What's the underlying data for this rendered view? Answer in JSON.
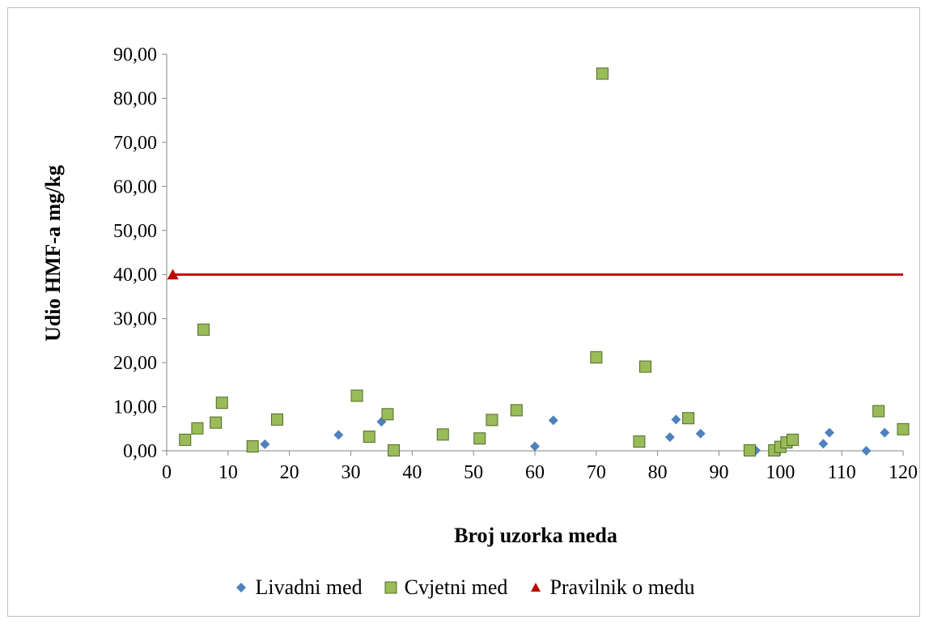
{
  "chart_data": {
    "type": "scatter",
    "xlabel": "Broj uzorka meda",
    "ylabel": "Udio HMF-a mg/kg",
    "xlim": [
      0,
      120
    ],
    "ylim": [
      0,
      90
    ],
    "x_ticks": [
      "0",
      "10",
      "20",
      "30",
      "40",
      "50",
      "60",
      "70",
      "80",
      "90",
      "100",
      "110",
      "120"
    ],
    "y_ticks": [
      "0,00",
      "10,00",
      "20,00",
      "30,00",
      "40,00",
      "50,00",
      "60,00",
      "70,00",
      "80,00",
      "90,00"
    ],
    "grid": false,
    "legend_position": "bottom",
    "series": [
      {
        "name": "Livadni med",
        "marker": "diamond",
        "color": "#4f81bd",
        "points": [
          [
            16,
            1.5
          ],
          [
            28,
            3.6
          ],
          [
            35,
            6.6
          ],
          [
            60,
            1.0
          ],
          [
            63,
            6.9
          ],
          [
            82,
            3.1
          ],
          [
            83,
            7.1
          ],
          [
            87,
            3.9
          ],
          [
            96,
            0.1
          ],
          [
            107,
            1.6
          ],
          [
            108,
            4.1
          ],
          [
            114,
            0.0
          ],
          [
            117,
            4.1
          ]
        ]
      },
      {
        "name": "Cvjetni med",
        "marker": "square",
        "color": "#9bbb59",
        "points": [
          [
            3,
            2.5
          ],
          [
            5,
            5.1
          ],
          [
            6,
            27.5
          ],
          [
            8,
            6.4
          ],
          [
            9,
            10.9
          ],
          [
            14,
            1.0
          ],
          [
            18,
            7.1
          ],
          [
            31,
            12.5
          ],
          [
            33,
            3.2
          ],
          [
            36,
            8.3
          ],
          [
            37,
            0.1
          ],
          [
            45,
            3.7
          ],
          [
            51,
            2.8
          ],
          [
            53,
            7.0
          ],
          [
            57,
            9.2
          ],
          [
            70,
            21.2
          ],
          [
            71,
            85.6
          ],
          [
            77,
            2.1
          ],
          [
            78,
            19.1
          ],
          [
            85,
            7.4
          ],
          [
            95,
            0.1
          ],
          [
            99,
            0.1
          ],
          [
            100,
            0.9
          ],
          [
            101,
            1.9
          ],
          [
            102,
            2.5
          ],
          [
            116,
            9.0
          ],
          [
            120,
            4.9
          ]
        ]
      },
      {
        "name": "Pravilnik o medu",
        "marker": "triangle",
        "color": "#c00000",
        "line": true,
        "points": [
          [
            1,
            40
          ],
          [
            120,
            40
          ]
        ]
      }
    ]
  }
}
